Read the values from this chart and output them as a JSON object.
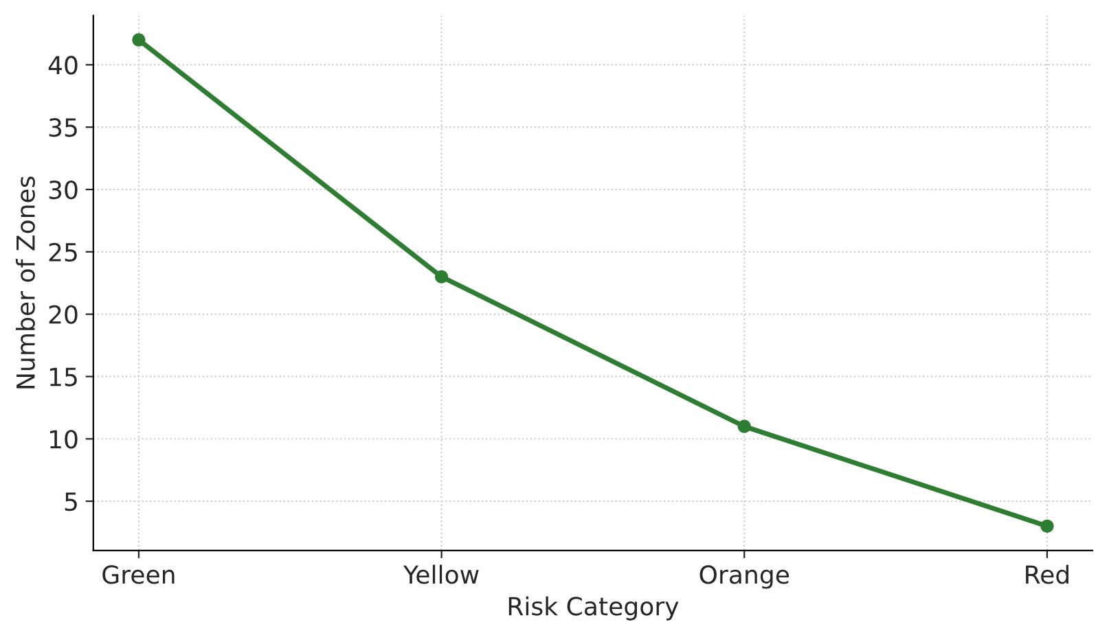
{
  "chart_data": {
    "type": "line",
    "xlabel": "Risk Category",
    "ylabel": "Number of Zones",
    "categories": [
      "Green",
      "Yellow",
      "Orange",
      "Red"
    ],
    "series": [
      {
        "color": "#2e7d32",
        "values": [
          42,
          23,
          11,
          3
        ]
      }
    ],
    "ylim": [
      1.05,
      43.95
    ],
    "yticks": [
      5,
      10,
      15,
      20,
      25,
      30,
      35,
      40
    ],
    "grid": true,
    "marker": "circle",
    "line_style": "solid",
    "legend": false
  }
}
